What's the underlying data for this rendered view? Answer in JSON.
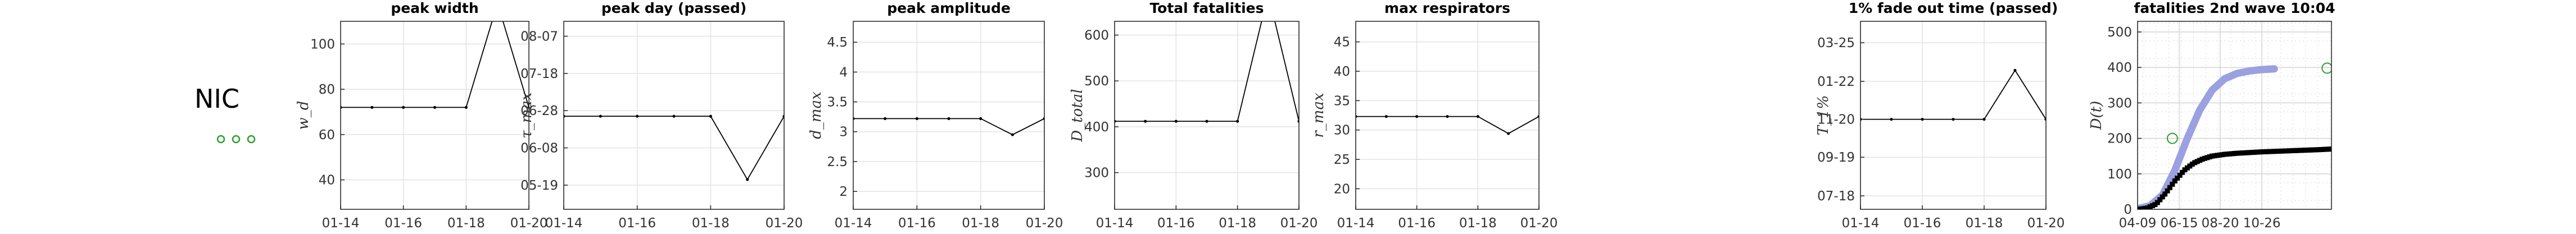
{
  "country": {
    "name": "NIC",
    "marker_color": "#2ca02c"
  },
  "panels": [
    {
      "id": "peak-width",
      "title": "peak width",
      "ylabel": "w_d",
      "x_ticks": [
        "01-14",
        "01-16",
        "01-18",
        "01-20"
      ],
      "y_ticks": [
        {
          "v": 40,
          "label": "40"
        },
        {
          "v": 60,
          "label": "60"
        },
        {
          "v": 80,
          "label": "80"
        },
        {
          "v": 100,
          "label": "100"
        }
      ],
      "ylim": [
        27,
        110
      ],
      "series": [
        14,
        15,
        16,
        17,
        18,
        19,
        20
      ],
      "values": [
        72,
        72,
        72,
        72,
        72,
        118,
        72
      ]
    },
    {
      "id": "peak-day",
      "title": "peak day (passed)",
      "ylabel": "τ_max",
      "x_ticks": [
        "01-14",
        "01-16",
        "01-18",
        "01-20"
      ],
      "y_ticks": [
        {
          "v": 0,
          "label": "05-19"
        },
        {
          "v": 20,
          "label": "06-08"
        },
        {
          "v": 40,
          "label": "06-28"
        },
        {
          "v": 60,
          "label": "07-18"
        },
        {
          "v": 80,
          "label": "08-07"
        }
      ],
      "ylim": [
        -13,
        88
      ],
      "series": [
        14,
        15,
        16,
        17,
        18,
        19,
        20
      ],
      "values": [
        37,
        37,
        37,
        37,
        37,
        3,
        37
      ]
    },
    {
      "id": "peak-amplitude",
      "title": "peak amplitude",
      "ylabel": "d_max",
      "x_ticks": [
        "01-14",
        "01-16",
        "01-18",
        "01-20"
      ],
      "y_ticks": [
        {
          "v": 2,
          "label": "2"
        },
        {
          "v": 2.5,
          "label": "2.5"
        },
        {
          "v": 3,
          "label": "3"
        },
        {
          "v": 3.5,
          "label": "3.5"
        },
        {
          "v": 4,
          "label": "4"
        },
        {
          "v": 4.5,
          "label": "4.5"
        }
      ],
      "ylim": [
        1.7,
        4.85
      ],
      "series": [
        14,
        15,
        16,
        17,
        18,
        19,
        20
      ],
      "values": [
        3.22,
        3.22,
        3.22,
        3.22,
        3.22,
        2.95,
        3.22
      ]
    },
    {
      "id": "total-fatalities",
      "title": "Total fatalities",
      "ylabel": "D_total",
      "x_ticks": [
        "01-14",
        "01-16",
        "01-18",
        "01-20"
      ],
      "y_ticks": [
        {
          "v": 300,
          "label": "300"
        },
        {
          "v": 400,
          "label": "400"
        },
        {
          "v": 500,
          "label": "500"
        },
        {
          "v": 600,
          "label": "600"
        }
      ],
      "ylim": [
        220,
        630
      ],
      "series": [
        14,
        15,
        16,
        17,
        18,
        19,
        20
      ],
      "values": [
        412,
        412,
        412,
        412,
        412,
        690,
        412
      ]
    },
    {
      "id": "max-respirators",
      "title": "max respirators",
      "ylabel": "r_max",
      "x_ticks": [
        "01-14",
        "01-16",
        "01-18",
        "01-20"
      ],
      "y_ticks": [
        {
          "v": 20,
          "label": "20"
        },
        {
          "v": 25,
          "label": "25"
        },
        {
          "v": 30,
          "label": "30"
        },
        {
          "v": 35,
          "label": "35"
        },
        {
          "v": 40,
          "label": "40"
        },
        {
          "v": 45,
          "label": "45"
        }
      ],
      "ylim": [
        16.5,
        48.5
      ],
      "series": [
        14,
        15,
        16,
        17,
        18,
        19,
        20
      ],
      "values": [
        32.3,
        32.3,
        32.3,
        32.3,
        32.3,
        29.4,
        32.3
      ]
    },
    {
      "id": "fade-out-time",
      "title": "1% fade out time (passed)",
      "ylabel": "T_1%",
      "x_ticks": [
        "01-14",
        "01-16",
        "01-18",
        "01-20"
      ],
      "y_ticks": [
        {
          "v": 0,
          "label": "07-18"
        },
        {
          "v": 63,
          "label": "09-19"
        },
        {
          "v": 125,
          "label": "11-20"
        },
        {
          "v": 187,
          "label": "01-22"
        },
        {
          "v": 250,
          "label": "03-25"
        }
      ],
      "ylim": [
        -22,
        285
      ],
      "series": [
        14,
        15,
        16,
        17,
        18,
        19,
        20
      ],
      "values": [
        125,
        125,
        125,
        125,
        125,
        205,
        125
      ]
    }
  ],
  "wave": {
    "title": "fatalities 2nd wave 10:04",
    "ylabel": "D(t)",
    "x_ticks": [
      "04-09",
      "06-15",
      "08-20",
      "10-26"
    ],
    "y_ticks": [
      {
        "v": 0,
        "label": "0"
      },
      {
        "v": 100,
        "label": "100"
      },
      {
        "v": 200,
        "label": "200"
      },
      {
        "v": 300,
        "label": "300"
      },
      {
        "v": 400,
        "label": "400"
      },
      {
        "v": 500,
        "label": "500"
      }
    ],
    "ylim": [
      0,
      530
    ],
    "xlim": [
      0,
      312
    ],
    "tick_days": [
      0,
      67,
      133,
      200
    ],
    "projection_color": "#9aa0e0",
    "observed_color": "#000000",
    "circle_color": "#2ca02c",
    "circles": [
      {
        "day": 56,
        "value": 200
      },
      {
        "day": 305,
        "value": 398
      }
    ],
    "projection": [
      [
        0,
        2
      ],
      [
        20,
        10
      ],
      [
        40,
        40
      ],
      [
        60,
        110
      ],
      [
        80,
        200
      ],
      [
        100,
        280
      ],
      [
        120,
        336
      ],
      [
        140,
        368
      ],
      [
        160,
        383
      ],
      [
        180,
        390
      ],
      [
        200,
        394
      ],
      [
        220,
        396
      ]
    ],
    "observed": [
      [
        0,
        0
      ],
      [
        15,
        3
      ],
      [
        30,
        15
      ],
      [
        45,
        45
      ],
      [
        60,
        80
      ],
      [
        75,
        110
      ],
      [
        90,
        130
      ],
      [
        105,
        142
      ],
      [
        120,
        150
      ],
      [
        140,
        155
      ],
      [
        160,
        158
      ],
      [
        180,
        160
      ],
      [
        200,
        162
      ],
      [
        230,
        164
      ],
      [
        260,
        166
      ],
      [
        290,
        168
      ],
      [
        312,
        170
      ]
    ]
  }
}
